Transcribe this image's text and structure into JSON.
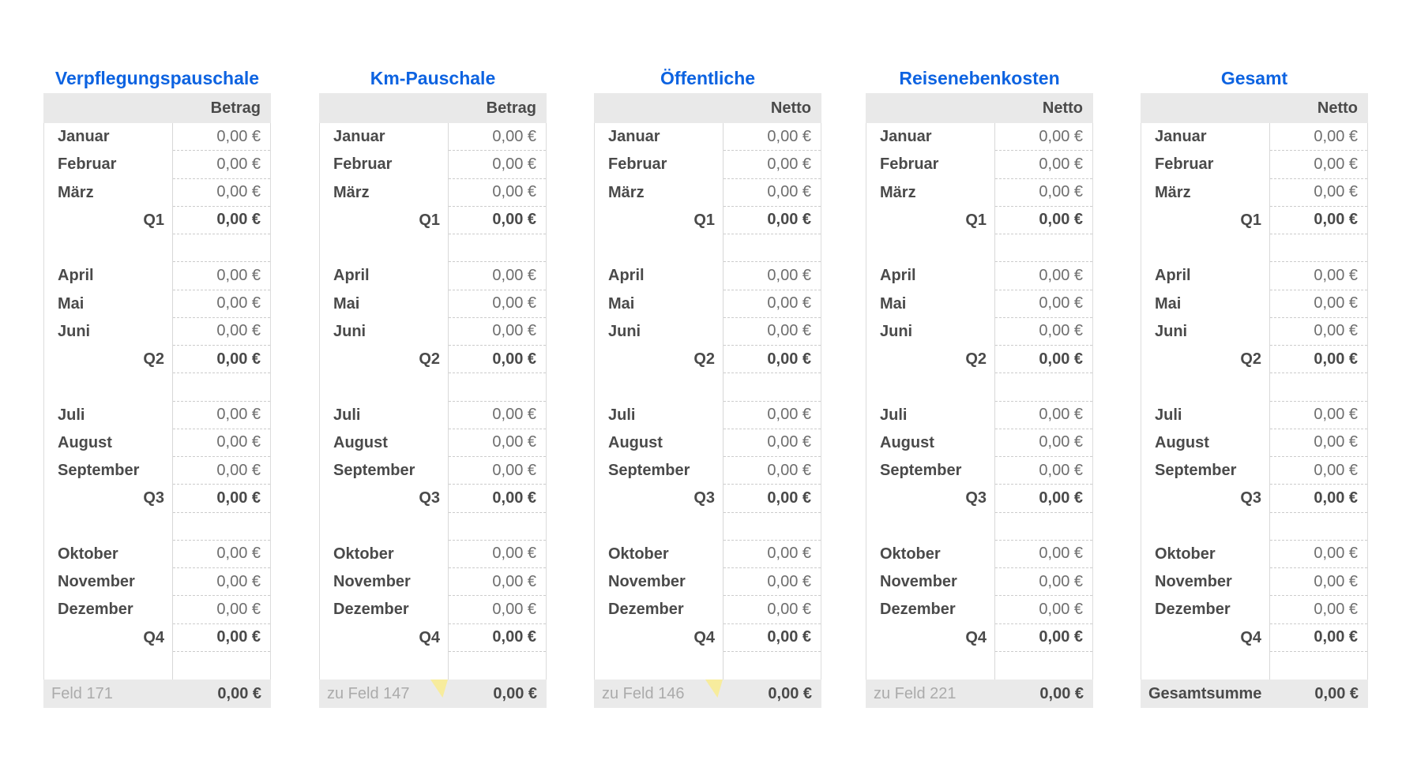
{
  "colors": {
    "title_blue": "#0d63e1",
    "header_bg": "#e9e9e9",
    "footer_bg": "#eaeaea",
    "label_text": "#4a4a4a",
    "value_text": "#6e6e6e",
    "footer_muted_text": "#ababab",
    "divider_line": "#d8d8d8",
    "edge_line": "#dcdcdc",
    "dashed_line": "#cccccc",
    "marker_yellow": "#f7ec9d",
    "background": "#ffffff"
  },
  "tables": [
    {
      "title": "Verpflegungspauschale",
      "value_header": "Betrag",
      "rows": [
        {
          "type": "month",
          "label": "Januar",
          "value": "0,00 €"
        },
        {
          "type": "month",
          "label": "Februar",
          "value": "0,00 €"
        },
        {
          "type": "month",
          "label": "März",
          "value": "0,00 €"
        },
        {
          "type": "quarter",
          "label": "Q1",
          "value": "0,00 €"
        },
        {
          "type": "spacer",
          "label": "",
          "value": ""
        },
        {
          "type": "month",
          "label": "April",
          "value": "0,00 €"
        },
        {
          "type": "month",
          "label": "Mai",
          "value": "0,00 €"
        },
        {
          "type": "month",
          "label": "Juni",
          "value": "0,00 €"
        },
        {
          "type": "quarter",
          "label": "Q2",
          "value": "0,00 €"
        },
        {
          "type": "spacer",
          "label": "",
          "value": ""
        },
        {
          "type": "month",
          "label": "Juli",
          "value": "0,00 €"
        },
        {
          "type": "month",
          "label": "August",
          "value": "0,00 €"
        },
        {
          "type": "month",
          "label": "September",
          "value": "0,00 €"
        },
        {
          "type": "quarter",
          "label": "Q3",
          "value": "0,00 €"
        },
        {
          "type": "spacer",
          "label": "",
          "value": ""
        },
        {
          "type": "month",
          "label": "Oktober",
          "value": "0,00 €"
        },
        {
          "type": "month",
          "label": "November",
          "value": "0,00 €"
        },
        {
          "type": "month",
          "label": "Dezember",
          "value": "0,00 €"
        },
        {
          "type": "quarter",
          "label": "Q4",
          "value": "0,00 €"
        },
        {
          "type": "spacer-end",
          "label": "",
          "value": ""
        }
      ],
      "footer": {
        "label": "Feld 171",
        "value": "0,00 €",
        "marker": false,
        "emphasis": false
      }
    },
    {
      "title": "Km-Pauschale",
      "value_header": "Betrag",
      "rows": [
        {
          "type": "month",
          "label": "Januar",
          "value": "0,00 €"
        },
        {
          "type": "month",
          "label": "Februar",
          "value": "0,00 €"
        },
        {
          "type": "month",
          "label": "März",
          "value": "0,00 €"
        },
        {
          "type": "quarter",
          "label": "Q1",
          "value": "0,00 €"
        },
        {
          "type": "spacer",
          "label": "",
          "value": ""
        },
        {
          "type": "month",
          "label": "April",
          "value": "0,00 €"
        },
        {
          "type": "month",
          "label": "Mai",
          "value": "0,00 €"
        },
        {
          "type": "month",
          "label": "Juni",
          "value": "0,00 €"
        },
        {
          "type": "quarter",
          "label": "Q2",
          "value": "0,00 €"
        },
        {
          "type": "spacer",
          "label": "",
          "value": ""
        },
        {
          "type": "month",
          "label": "Juli",
          "value": "0,00 €"
        },
        {
          "type": "month",
          "label": "August",
          "value": "0,00 €"
        },
        {
          "type": "month",
          "label": "September",
          "value": "0,00 €"
        },
        {
          "type": "quarter",
          "label": "Q3",
          "value": "0,00 €"
        },
        {
          "type": "spacer",
          "label": "",
          "value": ""
        },
        {
          "type": "month",
          "label": "Oktober",
          "value": "0,00 €"
        },
        {
          "type": "month",
          "label": "November",
          "value": "0,00 €"
        },
        {
          "type": "month",
          "label": "Dezember",
          "value": "0,00 €"
        },
        {
          "type": "quarter",
          "label": "Q4",
          "value": "0,00 €"
        },
        {
          "type": "spacer-end",
          "label": "",
          "value": ""
        }
      ],
      "footer": {
        "label": "zu Feld 147",
        "value": "0,00 €",
        "marker": true,
        "emphasis": false
      }
    },
    {
      "title": "Öffentliche",
      "value_header": "Netto",
      "rows": [
        {
          "type": "month",
          "label": "Januar",
          "value": "0,00 €"
        },
        {
          "type": "month",
          "label": "Februar",
          "value": "0,00 €"
        },
        {
          "type": "month",
          "label": "März",
          "value": "0,00 €"
        },
        {
          "type": "quarter",
          "label": "Q1",
          "value": "0,00 €"
        },
        {
          "type": "spacer",
          "label": "",
          "value": ""
        },
        {
          "type": "month",
          "label": "April",
          "value": "0,00 €"
        },
        {
          "type": "month",
          "label": "Mai",
          "value": "0,00 €"
        },
        {
          "type": "month",
          "label": "Juni",
          "value": "0,00 €"
        },
        {
          "type": "quarter",
          "label": "Q2",
          "value": "0,00 €"
        },
        {
          "type": "spacer",
          "label": "",
          "value": ""
        },
        {
          "type": "month",
          "label": "Juli",
          "value": "0,00 €"
        },
        {
          "type": "month",
          "label": "August",
          "value": "0,00 €"
        },
        {
          "type": "month",
          "label": "September",
          "value": "0,00 €"
        },
        {
          "type": "quarter",
          "label": "Q3",
          "value": "0,00 €"
        },
        {
          "type": "spacer",
          "label": "",
          "value": ""
        },
        {
          "type": "month",
          "label": "Oktober",
          "value": "0,00 €"
        },
        {
          "type": "month",
          "label": "November",
          "value": "0,00 €"
        },
        {
          "type": "month",
          "label": "Dezember",
          "value": "0,00 €"
        },
        {
          "type": "quarter",
          "label": "Q4",
          "value": "0,00 €"
        },
        {
          "type": "spacer-end",
          "label": "",
          "value": ""
        }
      ],
      "footer": {
        "label": "zu Feld 146",
        "value": "0,00 €",
        "marker": true,
        "emphasis": false
      }
    },
    {
      "title": "Reisenebenkosten",
      "value_header": "Netto",
      "rows": [
        {
          "type": "month",
          "label": "Januar",
          "value": "0,00 €"
        },
        {
          "type": "month",
          "label": "Februar",
          "value": "0,00 €"
        },
        {
          "type": "month",
          "label": "März",
          "value": "0,00 €"
        },
        {
          "type": "quarter",
          "label": "Q1",
          "value": "0,00 €"
        },
        {
          "type": "spacer",
          "label": "",
          "value": ""
        },
        {
          "type": "month",
          "label": "April",
          "value": "0,00 €"
        },
        {
          "type": "month",
          "label": "Mai",
          "value": "0,00 €"
        },
        {
          "type": "month",
          "label": "Juni",
          "value": "0,00 €"
        },
        {
          "type": "quarter",
          "label": "Q2",
          "value": "0,00 €"
        },
        {
          "type": "spacer",
          "label": "",
          "value": ""
        },
        {
          "type": "month",
          "label": "Juli",
          "value": "0,00 €"
        },
        {
          "type": "month",
          "label": "August",
          "value": "0,00 €"
        },
        {
          "type": "month",
          "label": "September",
          "value": "0,00 €"
        },
        {
          "type": "quarter",
          "label": "Q3",
          "value": "0,00 €"
        },
        {
          "type": "spacer",
          "label": "",
          "value": ""
        },
        {
          "type": "month",
          "label": "Oktober",
          "value": "0,00 €"
        },
        {
          "type": "month",
          "label": "November",
          "value": "0,00 €"
        },
        {
          "type": "month",
          "label": "Dezember",
          "value": "0,00 €"
        },
        {
          "type": "quarter",
          "label": "Q4",
          "value": "0,00 €"
        },
        {
          "type": "spacer-end",
          "label": "",
          "value": ""
        }
      ],
      "footer": {
        "label": "zu Feld 221",
        "value": "0,00 €",
        "marker": false,
        "emphasis": false
      }
    },
    {
      "title": "Gesamt",
      "value_header": "Netto",
      "rows": [
        {
          "type": "month",
          "label": "Januar",
          "value": "0,00 €"
        },
        {
          "type": "month",
          "label": "Februar",
          "value": "0,00 €"
        },
        {
          "type": "month",
          "label": "März",
          "value": "0,00 €"
        },
        {
          "type": "quarter",
          "label": "Q1",
          "value": "0,00 €"
        },
        {
          "type": "spacer",
          "label": "",
          "value": ""
        },
        {
          "type": "month",
          "label": "April",
          "value": "0,00 €"
        },
        {
          "type": "month",
          "label": "Mai",
          "value": "0,00 €"
        },
        {
          "type": "month",
          "label": "Juni",
          "value": "0,00 €"
        },
        {
          "type": "quarter",
          "label": "Q2",
          "value": "0,00 €"
        },
        {
          "type": "spacer",
          "label": "",
          "value": ""
        },
        {
          "type": "month",
          "label": "Juli",
          "value": "0,00 €"
        },
        {
          "type": "month",
          "label": "August",
          "value": "0,00 €"
        },
        {
          "type": "month",
          "label": "September",
          "value": "0,00 €"
        },
        {
          "type": "quarter",
          "label": "Q3",
          "value": "0,00 €"
        },
        {
          "type": "spacer",
          "label": "",
          "value": ""
        },
        {
          "type": "month",
          "label": "Oktober",
          "value": "0,00 €"
        },
        {
          "type": "month",
          "label": "November",
          "value": "0,00 €"
        },
        {
          "type": "month",
          "label": "Dezember",
          "value": "0,00 €"
        },
        {
          "type": "quarter",
          "label": "Q4",
          "value": "0,00 €"
        },
        {
          "type": "spacer-end",
          "label": "",
          "value": ""
        }
      ],
      "footer": {
        "label": "Gesamtsumme",
        "value": "0,00 €",
        "marker": false,
        "emphasis": true
      }
    }
  ]
}
